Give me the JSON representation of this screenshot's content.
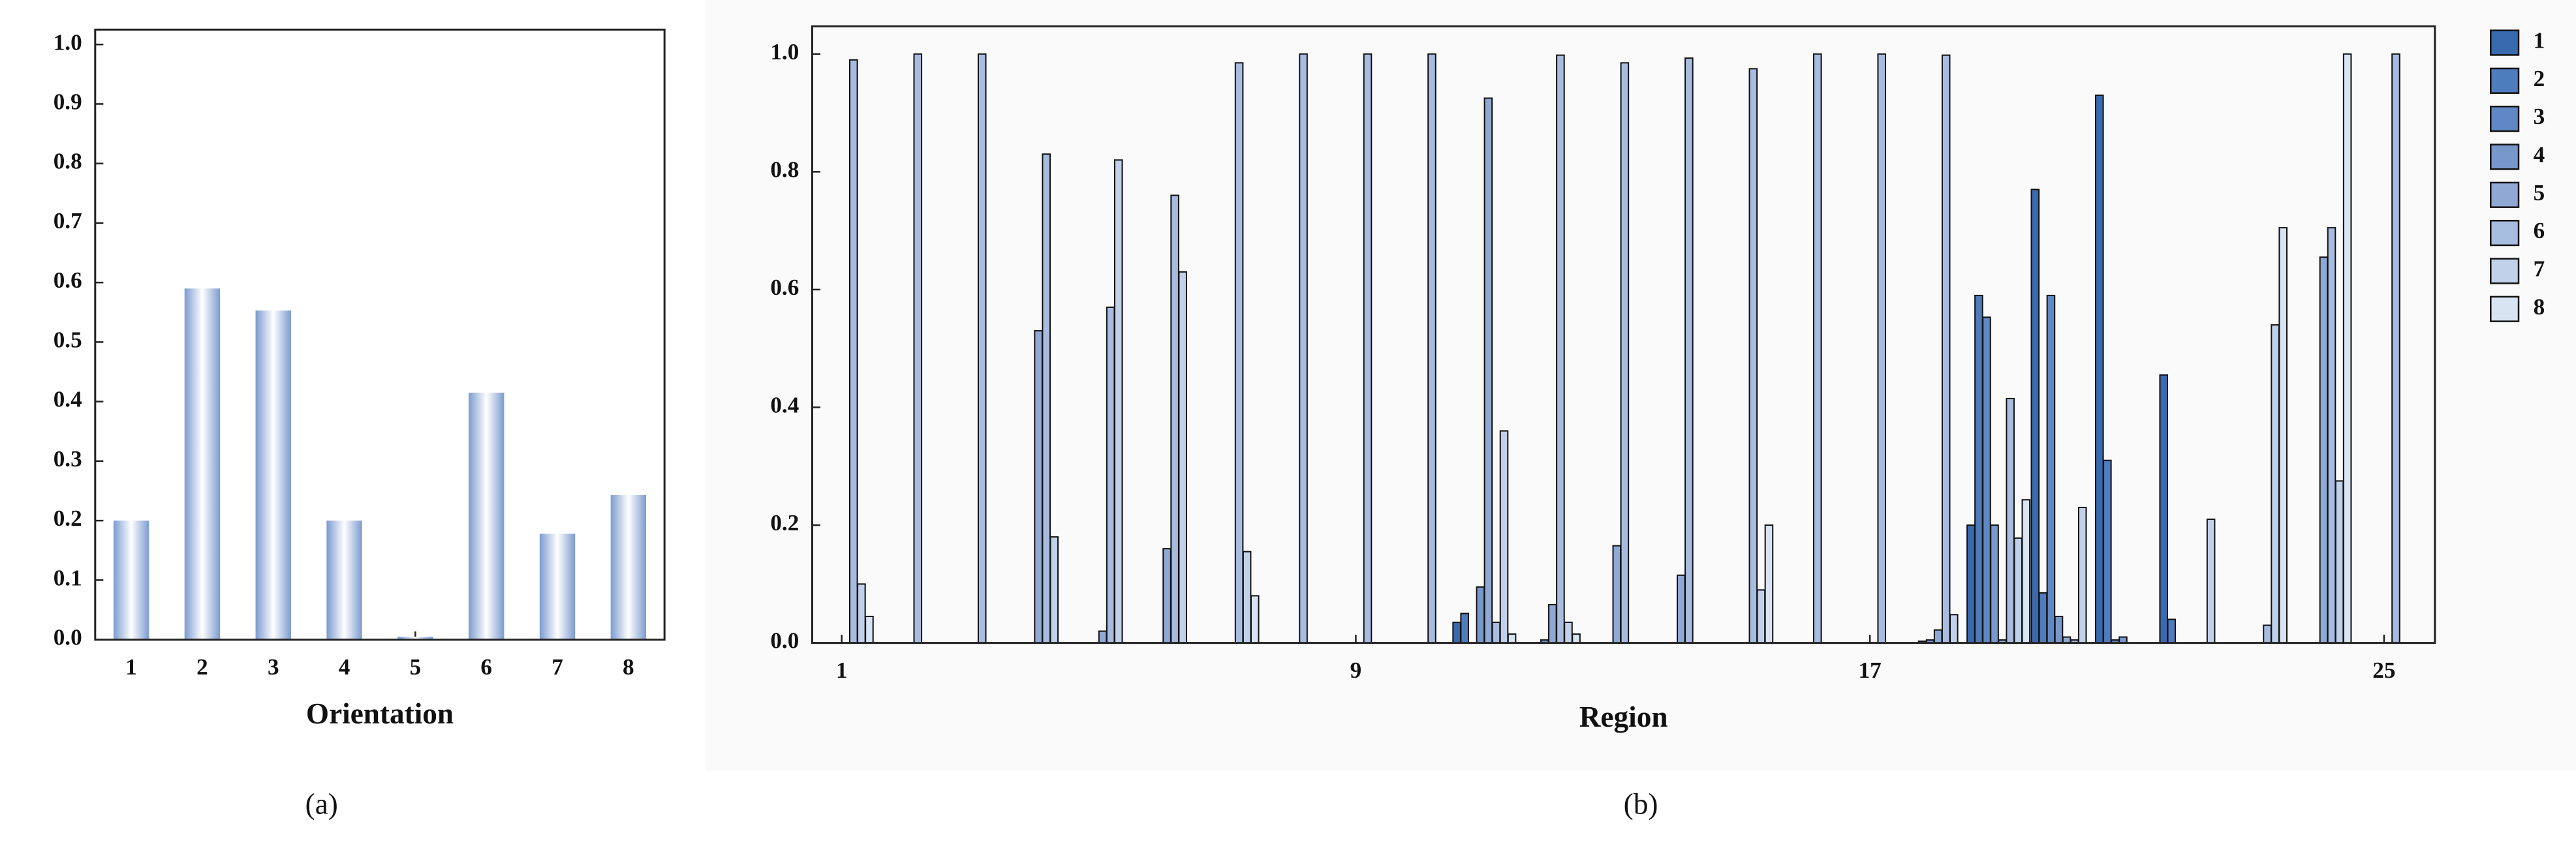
{
  "chart_data": [
    {
      "type": "bar",
      "caption": "(a)",
      "x_label": "Orientation",
      "categories": [
        "1",
        "2",
        "3",
        "4",
        "5",
        "6",
        "7",
        "8"
      ],
      "values": [
        0.2,
        0.59,
        0.553,
        0.2,
        0.005,
        0.415,
        0.178,
        0.243
      ],
      "color": "#7b9bd0",
      "ylim": [
        0,
        1.025
      ],
      "yticks": [
        {
          "value": 0,
          "label": "0.0"
        },
        0.1,
        0.2,
        0.3,
        0.4,
        0.5,
        0.6,
        0.7,
        0.8,
        0.9,
        {
          "value": 1,
          "label": "1.0"
        }
      ]
    },
    {
      "type": "bar",
      "caption": "(b)",
      "x_label": "Region",
      "categories": [
        "1",
        null,
        null,
        null,
        null,
        null,
        null,
        null,
        "9",
        null,
        null,
        null,
        null,
        null,
        null,
        null,
        "17",
        null,
        null,
        null,
        null,
        null,
        null,
        null,
        "25"
      ],
      "series": [
        {
          "name": "1",
          "color": "#3a6aae",
          "values": [
            0,
            0,
            0,
            0,
            0,
            0,
            0,
            0,
            0,
            0,
            0.035,
            0,
            0,
            0,
            0,
            0,
            0,
            0,
            0.2,
            0.77,
            0.93,
            0.455,
            0,
            0,
            0
          ]
        },
        {
          "name": "2",
          "color": "#4f7cbd",
          "values": [
            0,
            0,
            0,
            0,
            0,
            0,
            0,
            0,
            0,
            0,
            0.05,
            0,
            0,
            0,
            0,
            0,
            0,
            0,
            0.59,
            0.085,
            0.31,
            0.04,
            0,
            0,
            0
          ]
        },
        {
          "name": "3",
          "color": "#6088c4",
          "values": [
            0,
            0,
            0,
            0,
            0,
            0,
            0,
            0,
            0,
            0,
            0,
            0,
            0,
            0,
            0,
            0,
            0,
            0.003,
            0.553,
            0.59,
            0.005,
            0,
            0,
            0,
            0
          ]
        },
        {
          "name": "4",
          "color": "#7897cb",
          "values": [
            0,
            0,
            0,
            0,
            0,
            0,
            0,
            0,
            0,
            0,
            0.095,
            0.005,
            0,
            0,
            0,
            0,
            0,
            0.005,
            0.2,
            0.045,
            0.01,
            0,
            0,
            0,
            0
          ]
        },
        {
          "name": "5",
          "color": "#8fa8d4",
          "values": [
            0,
            0,
            0,
            0.53,
            0.02,
            0.16,
            0,
            0,
            0,
            0,
            0.925,
            0.065,
            0.165,
            0.115,
            0,
            0,
            0,
            0.022,
            0.005,
            0.01,
            0,
            0,
            0,
            0.655,
            0
          ]
        },
        {
          "name": "6",
          "color": "#a8bcdf",
          "values": [
            0.99,
            1,
            1,
            0.83,
            0.57,
            0.76,
            0.985,
            1,
            1,
            1,
            0.035,
            0.998,
            0.985,
            0.993,
            0.975,
            1,
            1,
            0.998,
            0.415,
            0.005,
            0,
            0,
            0.03,
            0.705,
            1
          ]
        },
        {
          "name": "7",
          "color": "#c2d1ea",
          "values": [
            0.1,
            0,
            0,
            0.18,
            0.82,
            0.63,
            0.155,
            0,
            0,
            0,
            0.36,
            0.035,
            0,
            0,
            0.09,
            0,
            0,
            0.048,
            0.178,
            0.23,
            0,
            0.21,
            0.54,
            0.275,
            0
          ]
        },
        {
          "name": "8",
          "color": "#d9e4f3",
          "values": [
            0.045,
            0,
            0,
            0,
            0,
            0,
            0.08,
            0,
            0,
            0,
            0.015,
            0.015,
            0,
            0,
            0.2,
            0,
            0,
            0,
            0.243,
            0,
            0,
            0,
            0.705,
            1,
            0
          ]
        }
      ],
      "legend": "outside-right",
      "ylim": [
        0,
        1.047
      ],
      "yticks": [
        {
          "value": 0,
          "label": "0.0"
        },
        0.2,
        0.4,
        0.6,
        0.8,
        {
          "value": 1,
          "label": "1.0"
        }
      ]
    }
  ]
}
